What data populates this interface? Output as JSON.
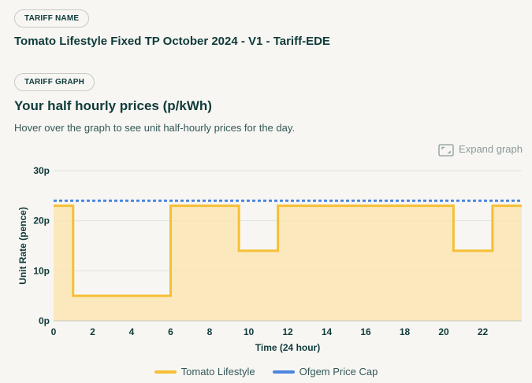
{
  "tariff_name_pill": "TARIFF NAME",
  "tariff_name": "Tomato Lifestyle Fixed TP October 2024 - V1 - Tariff-EDE",
  "tariff_graph_pill": "TARIFF GRAPH",
  "graph_title": "Your half hourly prices (p/kWh)",
  "graph_description": "Hover over the graph to see unit half-hourly prices for the day.",
  "expand_label": "Expand graph",
  "colors": {
    "tariff_line": "#f6bf35",
    "tariff_fill": "#fbe5b3",
    "price_cap": "#4b86e0",
    "text": "#0f3b3a"
  },
  "chart_data": {
    "type": "line",
    "xlabel": "Time (24 hour)",
    "ylabel": "Unit Rate (pence)",
    "xlim": [
      0,
      24
    ],
    "ylim": [
      0,
      30
    ],
    "x_ticks": [
      0,
      2,
      4,
      6,
      8,
      10,
      12,
      14,
      16,
      18,
      20,
      22
    ],
    "y_ticks": [
      0,
      10,
      20,
      30
    ],
    "y_tick_labels": [
      "0p",
      "10p",
      "20p",
      "30p"
    ],
    "grid": true,
    "legend_position": "bottom",
    "series": [
      {
        "name": "Tomato Lifestyle",
        "step": true,
        "filled": true,
        "points": [
          [
            0,
            23
          ],
          [
            1,
            23
          ],
          [
            1,
            5
          ],
          [
            6,
            5
          ],
          [
            6,
            23
          ],
          [
            9.5,
            23
          ],
          [
            9.5,
            14
          ],
          [
            11.5,
            14
          ],
          [
            11.5,
            23
          ],
          [
            20.5,
            23
          ],
          [
            20.5,
            14
          ],
          [
            22.5,
            14
          ],
          [
            22.5,
            23
          ],
          [
            24,
            23
          ]
        ]
      },
      {
        "name": "Ofgem Price Cap",
        "dashed": true,
        "points": [
          [
            0,
            24
          ],
          [
            24,
            24
          ]
        ]
      }
    ]
  }
}
